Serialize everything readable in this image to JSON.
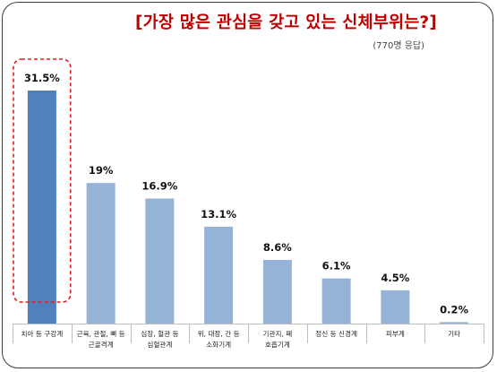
{
  "title": "[가장 많은 관심을 갖고 있는 신체부위는?]",
  "subtitle": "(770명 응답)",
  "colors": {
    "highlight_bar": "#4f81bd",
    "normal_bar": "#95b3d7",
    "highlight_box": "#e02020",
    "title": "#c00000"
  },
  "chart_data": {
    "type": "bar",
    "categories": [
      [
        "치아 등 구강계"
      ],
      [
        "근육, 관절, 뼈 등",
        "근골격계"
      ],
      [
        "심장, 혈관 등",
        "심혈관계"
      ],
      [
        "위, 대장, 간 등",
        "소화기계"
      ],
      [
        "기관지, 폐",
        "호흡기계"
      ],
      [
        "정신 등 신경계"
      ],
      [
        "피부계"
      ],
      [
        "기타"
      ]
    ],
    "values": [
      31.5,
      19,
      16.9,
      13.1,
      8.6,
      6.1,
      4.5,
      0.2
    ],
    "value_labels": [
      "31.5%",
      "19%",
      "16.9%",
      "13.1%",
      "8.6%",
      "6.1%",
      "4.5%",
      "0.2%"
    ],
    "highlighted_index": 0,
    "ylim": [
      0,
      31.5
    ],
    "grid": false,
    "legend": "none"
  }
}
